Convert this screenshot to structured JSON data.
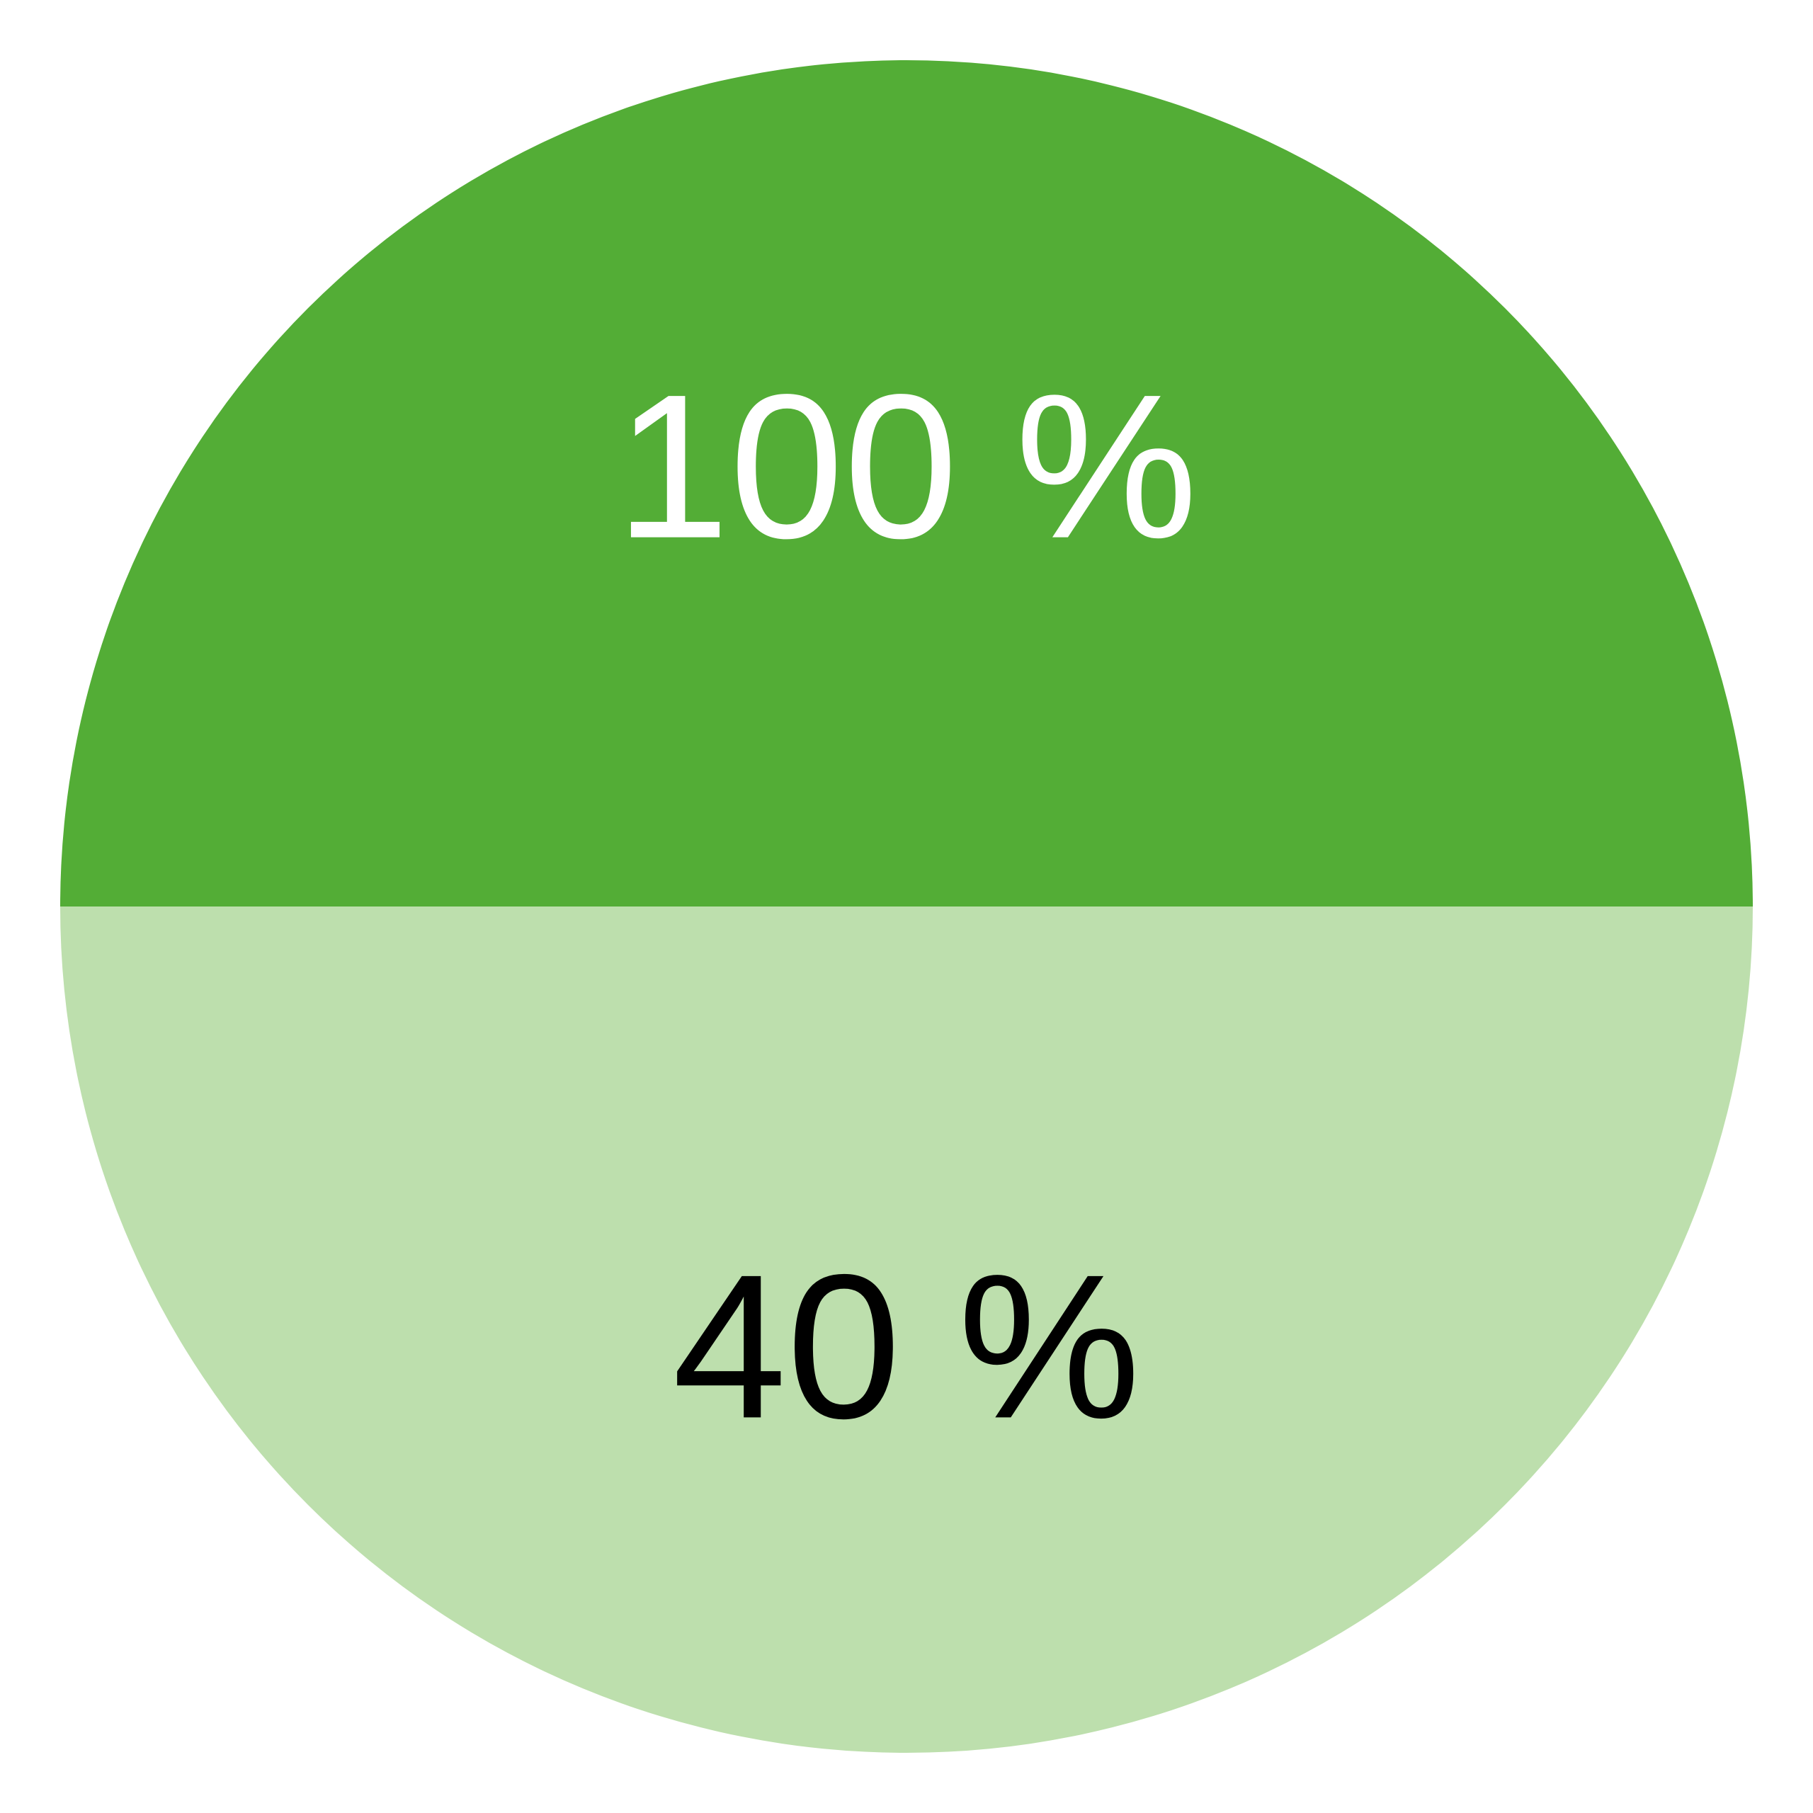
{
  "chart_data": {
    "type": "pie",
    "title": "",
    "slices": [
      {
        "label": "100 %",
        "value": 50,
        "color": "#53ad36",
        "label_color": "#ffffff"
      },
      {
        "label": "40 %",
        "value": 50,
        "color": "#bddfad",
        "label_color": "#000000"
      }
    ],
    "legend": "none"
  }
}
